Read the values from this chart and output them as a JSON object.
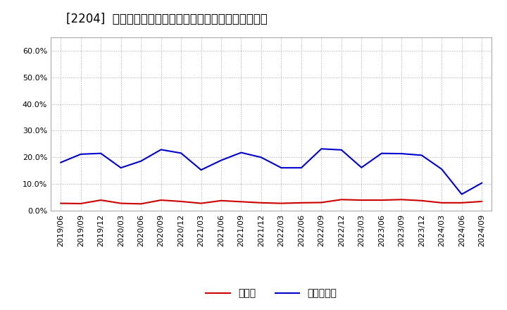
{
  "title": "[2204]  現預金、有利子負債の総資産に対する比率の推移",
  "x_labels": [
    "2019/06",
    "2019/09",
    "2019/12",
    "2020/03",
    "2020/06",
    "2020/09",
    "2020/12",
    "2021/03",
    "2021/06",
    "2021/09",
    "2021/12",
    "2022/03",
    "2022/06",
    "2022/09",
    "2022/12",
    "2023/03",
    "2023/06",
    "2023/09",
    "2023/12",
    "2024/03",
    "2024/06",
    "2024/09"
  ],
  "cash": [
    0.028,
    0.027,
    0.04,
    0.028,
    0.026,
    0.04,
    0.035,
    0.028,
    0.038,
    0.034,
    0.03,
    0.028,
    0.03,
    0.031,
    0.042,
    0.04,
    0.04,
    0.042,
    0.038,
    0.03,
    0.03,
    0.035
  ],
  "debt": [
    0.181,
    0.212,
    0.215,
    0.161,
    0.186,
    0.229,
    0.216,
    0.153,
    0.189,
    0.218,
    0.2,
    0.161,
    0.161,
    0.232,
    0.228,
    0.162,
    0.215,
    0.214,
    0.208,
    0.156,
    0.062,
    0.104
  ],
  "cash_color": "#cc0000",
  "debt_color": "#0000cc",
  "background_color": "#ffffff",
  "plot_bg_color": "#ffffff",
  "grid_color": "#aaaaaa",
  "ylim": [
    0.0,
    0.65
  ],
  "yticks": [
    0.0,
    0.1,
    0.2,
    0.3,
    0.4,
    0.5,
    0.6
  ],
  "legend_cash": "現預金",
  "legend_debt": "有利子負債",
  "title_fontsize": 12,
  "tick_fontsize": 8,
  "legend_fontsize": 10
}
